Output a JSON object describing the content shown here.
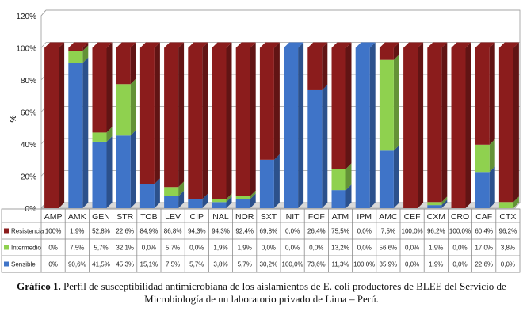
{
  "chart_data": {
    "type": "bar",
    "stacked": true,
    "ylabel": "%",
    "ylim": [
      0,
      120
    ],
    "yticks": [
      "0%",
      "20%",
      "40%",
      "60%",
      "80%",
      "100%",
      "120%"
    ],
    "grid": true,
    "legend": "table-left",
    "categories": [
      "AMP",
      "AMK",
      "GEN",
      "STR",
      "TOB",
      "LEV",
      "CIP",
      "NAL",
      "NOR",
      "SXT",
      "NIT",
      "FOF",
      "ATM",
      "IPM",
      "AMC",
      "CEF",
      "CXM",
      "CRO",
      "CAF",
      "CTX"
    ],
    "series": [
      {
        "name": "Sensible",
        "color": "#3f74c8",
        "values": [
          0,
          90.6,
          41.5,
          45.3,
          15.1,
          7.5,
          5.7,
          3.8,
          5.7,
          30.2,
          100,
          73.6,
          11.3,
          100,
          35.9,
          0,
          1.9,
          0,
          22.6,
          0
        ],
        "labels": [
          "0%",
          "90,6%",
          "41,5%",
          "45,3%",
          "15,1%",
          "7,5%",
          "5,7%",
          "3,8%",
          "5,7%",
          "30,2%",
          "100,0%",
          "73,6%",
          "11,3%",
          "100,0%",
          "35,9%",
          "0,0%",
          "1,9%",
          "0,0%",
          "22,6%",
          "0,0%"
        ]
      },
      {
        "name": "Intermedio",
        "color": "#8fd14f",
        "values": [
          0,
          7.5,
          5.7,
          32.1,
          0,
          5.7,
          0,
          1.9,
          1.9,
          0,
          0,
          0,
          13.2,
          0,
          56.6,
          0,
          1.9,
          0,
          17.0,
          3.8
        ],
        "labels": [
          "0%",
          "7,5%",
          "5,7%",
          "32,1%",
          "0,0%",
          "5,7%",
          "0,0%",
          "1,9%",
          "1,9%",
          "0,0%",
          "0,0%",
          "0,0%",
          "13,2%",
          "0,0%",
          "56,6%",
          "0,0%",
          "1,9%",
          "0,0%",
          "17,0%",
          "3,8%"
        ]
      },
      {
        "name": "Resistencia",
        "color": "#8b1c1c",
        "values": [
          100,
          1.9,
          52.8,
          22.6,
          84.9,
          86.8,
          94.3,
          94.3,
          92.4,
          69.8,
          0,
          26.4,
          75.5,
          0,
          7.5,
          100,
          96.2,
          100,
          60.4,
          96.2
        ],
        "labels": [
          "100%",
          "1,9%",
          "52,8%",
          "22,6%",
          "84,9%",
          "86,8%",
          "94,3%",
          "94,3%",
          "92,4%",
          "69,8%",
          "0,0%",
          "26,4%",
          "75,5%",
          "0,0%",
          "7,5%",
          "100,0%",
          "96,2%",
          "100,0%",
          "60,4%",
          "96,2%"
        ]
      }
    ]
  },
  "caption": {
    "label": "Gráfico 1.",
    "text": " Perfil de susceptibilidad antimicrobiana de los aislamientos de E. coli productores de BLEE del Servicio de Microbiología de un laboratorio privado de Lima – Perú."
  }
}
